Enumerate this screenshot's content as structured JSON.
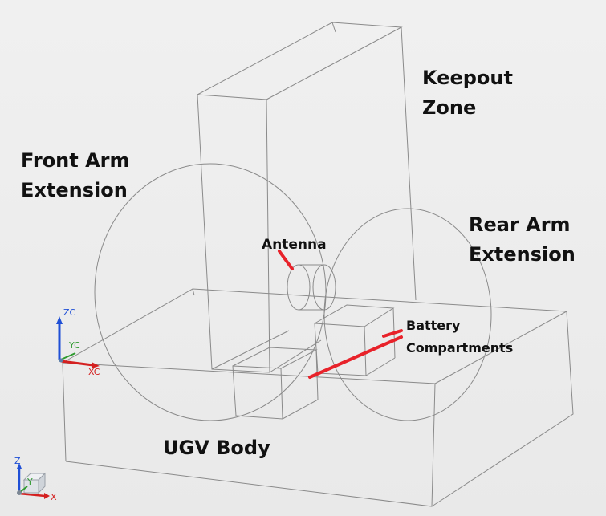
{
  "labels": {
    "keepout_zone": "Keepout\nZone",
    "front_arm_extension": "Front Arm\nExtension",
    "rear_arm_extension": "Rear Arm\nExtension",
    "antenna": "Antenna",
    "battery_compartments": "Battery\nCompartments",
    "ugv_body": "UGV Body"
  },
  "axes": {
    "zc": "ZC",
    "yc": "YC",
    "xc": "XC",
    "z": "Z",
    "y": "Y",
    "x": "X"
  },
  "colors": {
    "background": "#eeeeee",
    "wireframe": "#8a8a8a",
    "leader": "#e8222a",
    "axis_z": "#1f4fd6",
    "axis_y": "#2f9a2f",
    "axis_x": "#d42020"
  },
  "icons": {
    "orientation_cube": "view-triad-cube-icon"
  }
}
